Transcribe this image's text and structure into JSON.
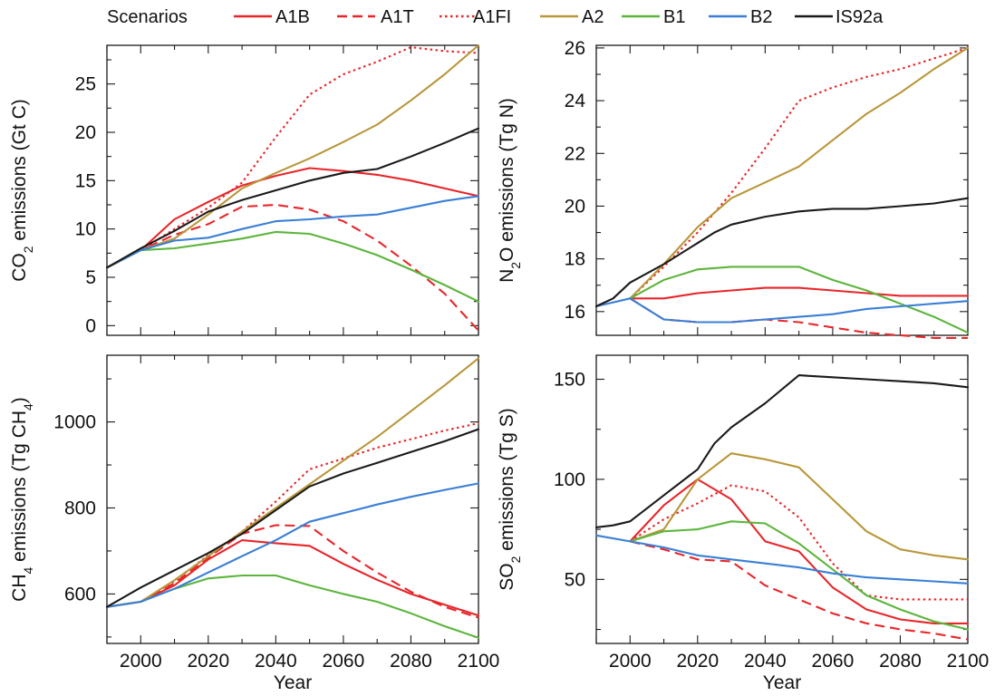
{
  "legend": {
    "title": "Scenarios",
    "entries": [
      {
        "name": "A1B",
        "color": "#e8262a",
        "dash": "solid"
      },
      {
        "name": "A1T",
        "color": "#e8262a",
        "dash": "dashed"
      },
      {
        "name": "A1FI",
        "color": "#e8262a",
        "dash": "dotted"
      },
      {
        "name": "A2",
        "color": "#b8973a",
        "dash": "solid"
      },
      {
        "name": "B1",
        "color": "#5cb53c",
        "dash": "solid"
      },
      {
        "name": "B2",
        "color": "#3a7fd5",
        "dash": "solid"
      },
      {
        "name": "IS92a",
        "color": "#1a1a1a",
        "dash": "solid"
      }
    ]
  },
  "chart_data": [
    {
      "type": "line",
      "ylabel_parts": [
        "CO",
        "2",
        " emissions (Gt C)"
      ],
      "xlabel": "",
      "xlim": [
        1990,
        2100
      ],
      "ylim": [
        -1,
        29
      ],
      "xticks": [
        2000,
        2020,
        2040,
        2060,
        2080,
        2100
      ],
      "yticks": [
        0,
        5,
        10,
        15,
        20,
        25
      ],
      "show_x_tick_labels": false,
      "series": [
        {
          "name": "A1B",
          "x": [
            1990,
            2000,
            2010,
            2020,
            2030,
            2040,
            2050,
            2060,
            2070,
            2080,
            2090,
            2100
          ],
          "y": [
            6.0,
            7.8,
            11.0,
            12.8,
            14.5,
            15.5,
            16.3,
            16.0,
            15.6,
            15.0,
            14.2,
            13.4
          ]
        },
        {
          "name": "A1T",
          "x": [
            1990,
            2000,
            2010,
            2020,
            2030,
            2040,
            2050,
            2060,
            2070,
            2080,
            2090,
            2100
          ],
          "y": [
            6.0,
            7.8,
            9.4,
            10.5,
            12.3,
            12.5,
            12.0,
            10.8,
            8.8,
            6.2,
            3.3,
            -0.5
          ]
        },
        {
          "name": "A1FI",
          "x": [
            1990,
            2000,
            2010,
            2020,
            2030,
            2040,
            2050,
            2060,
            2070,
            2080,
            2090,
            2100
          ],
          "y": [
            6.0,
            7.8,
            10.0,
            12.2,
            14.8,
            19.5,
            23.9,
            26.0,
            27.3,
            28.8,
            28.4,
            28.2
          ]
        },
        {
          "name": "A2",
          "x": [
            1990,
            2000,
            2010,
            2020,
            2030,
            2040,
            2050,
            2060,
            2070,
            2080,
            2090,
            2100
          ],
          "y": [
            6.0,
            7.8,
            9.0,
            11.5,
            14.2,
            15.8,
            17.3,
            19.0,
            20.8,
            23.3,
            26.0,
            29.0
          ]
        },
        {
          "name": "B1",
          "x": [
            1990,
            2000,
            2010,
            2020,
            2030,
            2040,
            2050,
            2060,
            2070,
            2080,
            2090,
            2100
          ],
          "y": [
            6.0,
            7.8,
            8.0,
            8.5,
            9.0,
            9.7,
            9.5,
            8.5,
            7.3,
            5.8,
            4.2,
            2.5
          ]
        },
        {
          "name": "B2",
          "x": [
            1990,
            2000,
            2010,
            2020,
            2030,
            2040,
            2050,
            2060,
            2070,
            2080,
            2090,
            2100
          ],
          "y": [
            6.0,
            7.8,
            8.8,
            9.1,
            10.0,
            10.8,
            11.0,
            11.3,
            11.5,
            12.2,
            12.9,
            13.4
          ]
        },
        {
          "name": "IS92a",
          "x": [
            1990,
            2000,
            2010,
            2020,
            2030,
            2040,
            2050,
            2060,
            2070,
            2080,
            2090,
            2100
          ],
          "y": [
            6.0,
            8.0,
            9.8,
            11.8,
            13.0,
            14.0,
            15.0,
            15.8,
            16.2,
            17.5,
            18.9,
            20.4
          ]
        }
      ]
    },
    {
      "type": "line",
      "ylabel_parts": [
        "N",
        "2",
        "O emissions (Tg N)"
      ],
      "xlabel": "",
      "xlim": [
        1990,
        2100
      ],
      "ylim": [
        15.1,
        26.1
      ],
      "xticks": [
        2000,
        2020,
        2040,
        2060,
        2080,
        2100
      ],
      "yticks": [
        16,
        18,
        20,
        22,
        24,
        26
      ],
      "show_x_tick_labels": false,
      "series": [
        {
          "name": "A1B",
          "x": [
            2000,
            2010,
            2020,
            2030,
            2040,
            2050,
            2060,
            2070,
            2080,
            2090,
            2100
          ],
          "y": [
            16.5,
            16.5,
            16.7,
            16.8,
            16.9,
            16.9,
            16.8,
            16.7,
            16.6,
            16.6,
            16.6
          ]
        },
        {
          "name": "A1T",
          "x": [
            2000,
            2010,
            2020,
            2030,
            2040,
            2050,
            2060,
            2070,
            2080,
            2090,
            2100
          ],
          "y": [
            16.5,
            15.7,
            15.6,
            15.6,
            15.7,
            15.6,
            15.4,
            15.2,
            15.1,
            15.0,
            15.0
          ]
        },
        {
          "name": "A1FI",
          "x": [
            2000,
            2010,
            2020,
            2030,
            2040,
            2050,
            2060,
            2070,
            2080,
            2090,
            2100
          ],
          "y": [
            16.5,
            17.7,
            19.0,
            20.5,
            22.2,
            24.0,
            24.5,
            24.9,
            25.2,
            25.6,
            26.0
          ]
        },
        {
          "name": "A2",
          "x": [
            2000,
            2010,
            2020,
            2030,
            2040,
            2050,
            2060,
            2070,
            2080,
            2090,
            2100
          ],
          "y": [
            16.5,
            17.8,
            19.2,
            20.3,
            20.9,
            21.5,
            22.5,
            23.5,
            24.3,
            25.2,
            26.0
          ]
        },
        {
          "name": "B1",
          "x": [
            2000,
            2010,
            2020,
            2030,
            2040,
            2050,
            2060,
            2070,
            2080,
            2090,
            2100
          ],
          "y": [
            16.5,
            17.2,
            17.6,
            17.7,
            17.7,
            17.7,
            17.2,
            16.8,
            16.3,
            15.8,
            15.2
          ]
        },
        {
          "name": "B2",
          "x": [
            1990,
            2000,
            2010,
            2020,
            2030,
            2040,
            2050,
            2060,
            2070,
            2080,
            2090,
            2100
          ],
          "y": [
            16.2,
            16.5,
            15.7,
            15.6,
            15.6,
            15.7,
            15.8,
            15.9,
            16.1,
            16.2,
            16.3,
            16.4
          ]
        },
        {
          "name": "IS92a",
          "x": [
            1990,
            1995,
            2000,
            2010,
            2020,
            2025,
            2030,
            2040,
            2050,
            2060,
            2070,
            2080,
            2090,
            2100
          ],
          "y": [
            16.2,
            16.5,
            17.1,
            17.8,
            18.6,
            19.0,
            19.3,
            19.6,
            19.8,
            19.9,
            19.9,
            20.0,
            20.1,
            20.3
          ]
        }
      ]
    },
    {
      "type": "line",
      "ylabel_parts": [
        "CH",
        "4",
        " emissions (Tg CH",
        "4",
        ")"
      ],
      "xlabel": "Year",
      "xlim": [
        1990,
        2100
      ],
      "ylim": [
        485,
        1155
      ],
      "xticks": [
        2000,
        2020,
        2040,
        2060,
        2080,
        2100
      ],
      "yticks": [
        600,
        800,
        1000
      ],
      "show_x_tick_labels": true,
      "series": [
        {
          "name": "A1B",
          "x": [
            1990,
            2000,
            2010,
            2020,
            2030,
            2040,
            2050,
            2060,
            2070,
            2080,
            2090,
            2100
          ],
          "y": [
            570,
            582,
            620,
            680,
            725,
            718,
            712,
            670,
            633,
            600,
            575,
            550
          ]
        },
        {
          "name": "A1T",
          "x": [
            1990,
            2000,
            2010,
            2020,
            2030,
            2040,
            2050,
            2060,
            2070,
            2080,
            2090,
            2100
          ],
          "y": [
            570,
            582,
            625,
            685,
            740,
            760,
            758,
            700,
            650,
            605,
            570,
            545
          ]
        },
        {
          "name": "A1FI",
          "x": [
            1990,
            2000,
            2010,
            2020,
            2030,
            2040,
            2050,
            2060,
            2070,
            2080,
            2090,
            2100
          ],
          "y": [
            570,
            582,
            630,
            690,
            745,
            815,
            890,
            915,
            940,
            960,
            980,
            997
          ]
        },
        {
          "name": "A2",
          "x": [
            1990,
            2000,
            2010,
            2020,
            2030,
            2040,
            2050,
            2060,
            2070,
            2080,
            2090,
            2100
          ],
          "y": [
            570,
            582,
            632,
            688,
            745,
            800,
            855,
            910,
            965,
            1025,
            1085,
            1148
          ]
        },
        {
          "name": "B1",
          "x": [
            1990,
            2000,
            2010,
            2020,
            2030,
            2040,
            2050,
            2060,
            2070,
            2080,
            2090,
            2100
          ],
          "y": [
            570,
            582,
            612,
            636,
            643,
            643,
            620,
            600,
            582,
            555,
            525,
            498
          ]
        },
        {
          "name": "B2",
          "x": [
            1990,
            2000,
            2010,
            2020,
            2030,
            2040,
            2050,
            2060,
            2070,
            2080,
            2090,
            2100
          ],
          "y": [
            570,
            582,
            612,
            650,
            688,
            725,
            768,
            788,
            808,
            826,
            842,
            857
          ]
        },
        {
          "name": "IS92a",
          "x": [
            1990,
            2000,
            2010,
            2020,
            2030,
            2040,
            2050,
            2060,
            2070,
            2080,
            2090,
            2100
          ],
          "y": [
            570,
            615,
            655,
            695,
            740,
            795,
            850,
            880,
            905,
            930,
            955,
            983
          ]
        }
      ]
    },
    {
      "type": "line",
      "ylabel_parts": [
        "SO",
        "2",
        " emissions (Tg S)"
      ],
      "xlabel": "Year",
      "xlim": [
        1990,
        2100
      ],
      "ylim": [
        18,
        162
      ],
      "xticks": [
        2000,
        2020,
        2040,
        2060,
        2080,
        2100
      ],
      "yticks": [
        50,
        100,
        150
      ],
      "show_x_tick_labels": true,
      "series": [
        {
          "name": "A1B",
          "x": [
            2000,
            2010,
            2020,
            2030,
            2040,
            2050,
            2060,
            2070,
            2080,
            2090,
            2100
          ],
          "y": [
            69,
            87,
            100,
            90,
            69,
            64,
            46,
            35,
            30,
            28,
            28
          ]
        },
        {
          "name": "A1T",
          "x": [
            2000,
            2010,
            2020,
            2030,
            2040,
            2050,
            2060,
            2070,
            2080,
            2090,
            2100
          ],
          "y": [
            69,
            65,
            60,
            59,
            47,
            40,
            33,
            28,
            25,
            23,
            20
          ]
        },
        {
          "name": "A1FI",
          "x": [
            2000,
            2010,
            2020,
            2030,
            2040,
            2050,
            2060,
            2070,
            2080,
            2090,
            2100
          ],
          "y": [
            69,
            80,
            88,
            97,
            94,
            81,
            58,
            42,
            40,
            40,
            40
          ]
        },
        {
          "name": "A2",
          "x": [
            2000,
            2010,
            2020,
            2030,
            2040,
            2050,
            2060,
            2070,
            2080,
            2090,
            2100
          ],
          "y": [
            69,
            75,
            100,
            113,
            110,
            106,
            90,
            74,
            65,
            62,
            60
          ]
        },
        {
          "name": "B1",
          "x": [
            2000,
            2010,
            2020,
            2030,
            2040,
            2050,
            2060,
            2070,
            2080,
            2090,
            2100
          ],
          "y": [
            69,
            74,
            75,
            79,
            78,
            68,
            55,
            42,
            35,
            29,
            25
          ]
        },
        {
          "name": "B2",
          "x": [
            1990,
            2000,
            2010,
            2020,
            2030,
            2040,
            2050,
            2060,
            2070,
            2080,
            2090,
            2100
          ],
          "y": [
            72,
            69,
            66,
            62,
            60,
            58,
            56,
            53,
            51,
            50,
            49,
            48
          ]
        },
        {
          "name": "IS92a",
          "x": [
            1990,
            1995,
            2000,
            2010,
            2020,
            2025,
            2030,
            2040,
            2050,
            2060,
            2070,
            2080,
            2090,
            2100
          ],
          "y": [
            76,
            77,
            79,
            92,
            105,
            118,
            126,
            138,
            152,
            151,
            150,
            149,
            148,
            146
          ]
        }
      ]
    }
  ]
}
